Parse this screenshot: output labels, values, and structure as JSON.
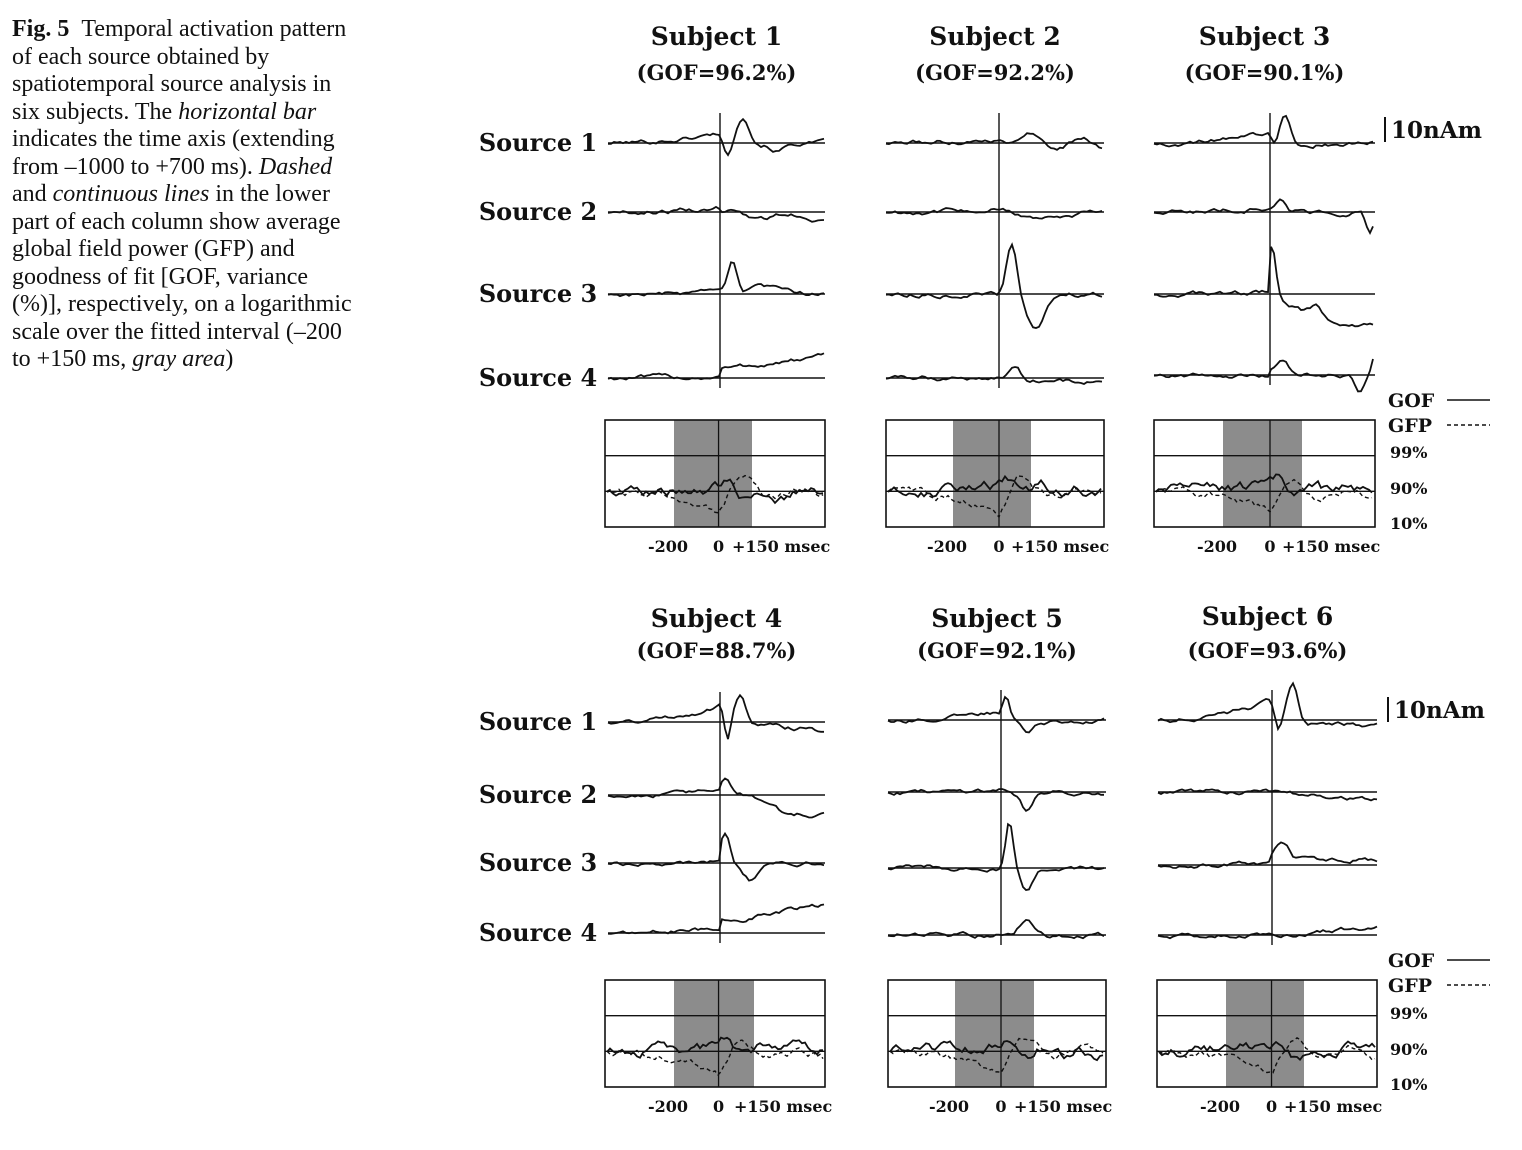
{
  "caption": {
    "figure_label": "Fig. 5",
    "segments": [
      {
        "t": "Temporal activation pattern of each source obtained by spatiotemporal source analysis in six subjects. The ",
        "i": false
      },
      {
        "t": "horizontal bar",
        "i": true
      },
      {
        "t": " indicates the time axis (extending from –1000 to +700 ms). ",
        "i": false
      },
      {
        "t": "Dashed",
        "i": true
      },
      {
        "t": " and ",
        "i": false
      },
      {
        "t": "continuous lines",
        "i": true
      },
      {
        "t": " in the lower part of each column show average global field power (GFP) and goodness of fit [GOF, variance (%)], respectively, on a logarithmic scale over the fitted interval (–200 to +150 ms, ",
        "i": false
      },
      {
        "t": "gray area",
        "i": true
      },
      {
        "t": ")",
        "i": false
      }
    ]
  },
  "source_labels": [
    "Source 1",
    "Source 2",
    "Source 3",
    "Source 4"
  ],
  "scale_bar_label": "10nAm",
  "legend": {
    "gof": "GOF",
    "gfp": "GFP"
  },
  "percent_labels": [
    "99%",
    "90%",
    "10%"
  ],
  "time_axis_labels": {
    "start": "-200",
    "zero": "0",
    "end": "+150 msec"
  },
  "subjects": [
    {
      "title": "Subject 1",
      "gof_label": "(GOF=96.2%)",
      "gof_percent": 96.2
    },
    {
      "title": "Subject 2",
      "gof_label": "(GOF=92.2%)",
      "gof_percent": 92.2
    },
    {
      "title": "Subject 3",
      "gof_label": "(GOF=90.1%)",
      "gof_percent": 90.1
    },
    {
      "title": "Subject 4",
      "gof_label": "(GOF=88.7%)",
      "gof_percent": 88.7
    },
    {
      "title": "Subject 5",
      "gof_label": "(GOF=92.1%)",
      "gof_percent": 92.1
    },
    {
      "title": "Subject 6",
      "gof_label": "(GOF=93.6%)",
      "gof_percent": 93.6
    }
  ],
  "colors": {
    "ink": "#111111",
    "fitted_interval": "#8c8c8c"
  }
}
